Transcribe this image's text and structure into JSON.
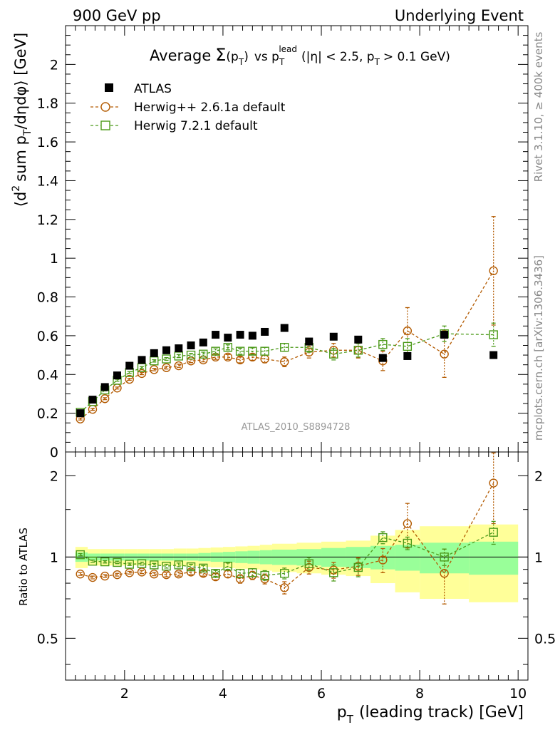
{
  "chart_data": {
    "type": "scatter",
    "top_left_label": "900 GeV pp",
    "top_right_label": "Underlying Event",
    "title": {
      "prefix": "Average",
      "sigma": "Σ",
      "arg": "(p",
      "arg_sub": "T",
      "arg_close": ")",
      "vs": "vs p",
      "vs_sub": "T",
      "vs_sup": "lead",
      "cuts_1": "(|η| < 2.5, p",
      "cuts_sub": "T",
      "cuts_2": "> 0.1 GeV)"
    },
    "ylabel": {
      "a": "⟨d",
      "a_sup": "2",
      "b": "sum p",
      "b_sub": "T",
      "c": "/dηdφ⟩ [GeV]"
    },
    "xlabel": {
      "a": "p",
      "a_sub": "T",
      "b": "(leading track) [GeV]"
    },
    "ratio_ylabel": "Ratio to ATLAS",
    "right_label_top": "Rivet 3.1.10, ≥ 400k events",
    "right_label_bottom": "mcplots.cern.ch [arXiv:1306.3436]",
    "watermark": "ATLAS_2010_S8894728",
    "xlim": [
      0.8,
      10.2
    ],
    "ylim": [
      0,
      2.2
    ],
    "ratio_ylim": [
      0.35,
      2.45
    ],
    "x_ticks": [
      "2",
      "4",
      "6",
      "8",
      "10"
    ],
    "y_ticks": [
      "0",
      "0.2",
      "0.4",
      "0.6",
      "0.8",
      "1",
      "1.2",
      "1.4",
      "1.6",
      "1.8",
      "2"
    ],
    "ratio_y_ticks": [
      "0.5",
      "1",
      "2"
    ],
    "legend": [
      "ATLAS",
      "Herwig++ 2.6.1a default",
      "Herwig 7.2.1 default"
    ],
    "x": [
      1.1,
      1.35,
      1.6,
      1.85,
      2.1,
      2.35,
      2.6,
      2.85,
      3.1,
      3.35,
      3.6,
      3.85,
      4.1,
      4.35,
      4.6,
      4.85,
      5.25,
      5.75,
      6.25,
      6.75,
      7.25,
      7.75,
      8.5,
      9.5
    ],
    "bin_edges": [
      1.0,
      1.25,
      1.5,
      1.75,
      2.0,
      2.25,
      2.5,
      2.75,
      3.0,
      3.25,
      3.5,
      3.75,
      4.0,
      4.25,
      4.5,
      4.75,
      5.0,
      5.5,
      6.0,
      6.5,
      7.0,
      7.5,
      8.0,
      9.0,
      10.0
    ],
    "series": [
      {
        "name": "ATLAS",
        "color": "#000000",
        "marker": "filled-square",
        "values": [
          0.2,
          0.27,
          0.335,
          0.395,
          0.445,
          0.475,
          0.51,
          0.525,
          0.535,
          0.55,
          0.565,
          0.605,
          0.59,
          0.605,
          0.6,
          0.62,
          0.64,
          0.57,
          0.595,
          0.58,
          0.485,
          0.495,
          0.605,
          0.5
        ]
      },
      {
        "name": "Herwig++ 2.6.1a default",
        "color": "#b35a00",
        "marker": "open-circle",
        "values": [
          0.17,
          0.22,
          0.275,
          0.33,
          0.375,
          0.405,
          0.425,
          0.435,
          0.445,
          0.47,
          0.475,
          0.49,
          0.49,
          0.475,
          0.49,
          0.48,
          0.465,
          0.515,
          0.525,
          0.525,
          0.47,
          0.625,
          0.505,
          0.935
        ],
        "errors": [
          0.005,
          0.005,
          0.005,
          0.005,
          0.005,
          0.006,
          0.006,
          0.007,
          0.008,
          0.009,
          0.01,
          0.012,
          0.013,
          0.015,
          0.017,
          0.02,
          0.025,
          0.03,
          0.035,
          0.04,
          0.05,
          0.12,
          0.12,
          0.28
        ],
        "ratio": [
          0.865,
          0.84,
          0.85,
          0.86,
          0.875,
          0.88,
          0.865,
          0.86,
          0.865,
          0.88,
          0.87,
          0.845,
          0.865,
          0.83,
          0.855,
          0.83,
          0.77,
          0.915,
          0.895,
          0.925,
          0.975,
          1.33,
          0.87,
          1.88
        ],
        "ratio_errors": [
          0.01,
          0.01,
          0.01,
          0.01,
          0.01,
          0.012,
          0.012,
          0.015,
          0.015,
          0.02,
          0.02,
          0.022,
          0.025,
          0.03,
          0.03,
          0.035,
          0.04,
          0.05,
          0.06,
          0.07,
          0.1,
          0.25,
          0.2,
          0.55
        ]
      },
      {
        "name": "Herwig 7.2.1 default",
        "color": "#4c9a1a",
        "marker": "open-square",
        "values": [
          0.205,
          0.26,
          0.32,
          0.37,
          0.41,
          0.435,
          0.47,
          0.48,
          0.495,
          0.5,
          0.505,
          0.52,
          0.54,
          0.52,
          0.52,
          0.52,
          0.54,
          0.54,
          0.505,
          0.525,
          0.555,
          0.545,
          0.61,
          0.605
        ],
        "errors": [
          0.005,
          0.005,
          0.005,
          0.005,
          0.005,
          0.006,
          0.006,
          0.007,
          0.008,
          0.009,
          0.01,
          0.012,
          0.013,
          0.015,
          0.017,
          0.02,
          0.02,
          0.025,
          0.03,
          0.035,
          0.03,
          0.04,
          0.04,
          0.06
        ],
        "ratio": [
          1.02,
          0.965,
          0.96,
          0.955,
          0.94,
          0.945,
          0.935,
          0.925,
          0.935,
          0.92,
          0.91,
          0.87,
          0.925,
          0.87,
          0.875,
          0.855,
          0.87,
          0.945,
          0.875,
          0.915,
          1.18,
          1.125,
          1.0,
          1.235
        ],
        "ratio_errors": [
          0.01,
          0.01,
          0.01,
          0.01,
          0.01,
          0.012,
          0.012,
          0.015,
          0.015,
          0.02,
          0.02,
          0.022,
          0.025,
          0.03,
          0.03,
          0.035,
          0.04,
          0.05,
          0.06,
          0.07,
          0.06,
          0.06,
          0.07,
          0.12
        ]
      }
    ],
    "ratio_band_inner": [
      0.04,
      0.03,
      0.03,
      0.03,
      0.03,
      0.03,
      0.03,
      0.03,
      0.03,
      0.03,
      0.035,
      0.04,
      0.045,
      0.05,
      0.055,
      0.06,
      0.065,
      0.07,
      0.08,
      0.09,
      0.1,
      0.11,
      0.13,
      0.14
    ],
    "ratio_band_outer": [
      0.09,
      0.07,
      0.07,
      0.07,
      0.07,
      0.07,
      0.07,
      0.07,
      0.075,
      0.075,
      0.08,
      0.085,
      0.09,
      0.095,
      0.1,
      0.11,
      0.12,
      0.13,
      0.14,
      0.15,
      0.2,
      0.26,
      0.3,
      0.32
    ],
    "colors": {
      "band_inner": "#99ff99",
      "band_outer": "#ffff99",
      "axis": "#000000"
    }
  }
}
